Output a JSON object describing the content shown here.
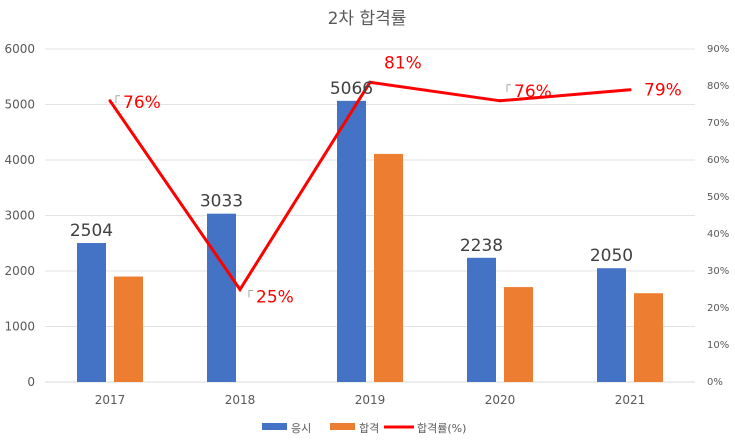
{
  "chart_data": {
    "type": "bar",
    "title": "2차 합격률",
    "categories": [
      "2017",
      "2018",
      "2019",
      "2020",
      "2021"
    ],
    "series": [
      {
        "name": "응시",
        "type": "bar",
        "color": "#4472C4",
        "values": [
          2504,
          3033,
          5066,
          2238,
          2050
        ]
      },
      {
        "name": "합격",
        "type": "bar",
        "color": "#ED7D31",
        "values": [
          1900,
          0,
          4110,
          1710,
          1600
        ]
      },
      {
        "name": "합격률(%)",
        "type": "line",
        "axis": "secondary",
        "color": "#FF0000",
        "values": [
          76,
          25,
          81,
          76,
          79
        ]
      }
    ],
    "bar_data_labels": [
      "2504",
      "3033",
      "5066",
      "2238",
      "2050"
    ],
    "line_data_labels": [
      "76%",
      "25%",
      "81%",
      "76%",
      "79%"
    ],
    "y_primary": {
      "range": [
        0,
        6000
      ],
      "ticks": [
        "0",
        "1000",
        "2000",
        "3000",
        "4000",
        "5000",
        "6000"
      ]
    },
    "y_secondary": {
      "range": [
        0,
        90
      ],
      "ticks": [
        "0%",
        "10%",
        "20%",
        "30%",
        "40%",
        "50%",
        "60%",
        "70%",
        "80%",
        "90%"
      ]
    },
    "grid": true,
    "legend_position": "bottom"
  }
}
